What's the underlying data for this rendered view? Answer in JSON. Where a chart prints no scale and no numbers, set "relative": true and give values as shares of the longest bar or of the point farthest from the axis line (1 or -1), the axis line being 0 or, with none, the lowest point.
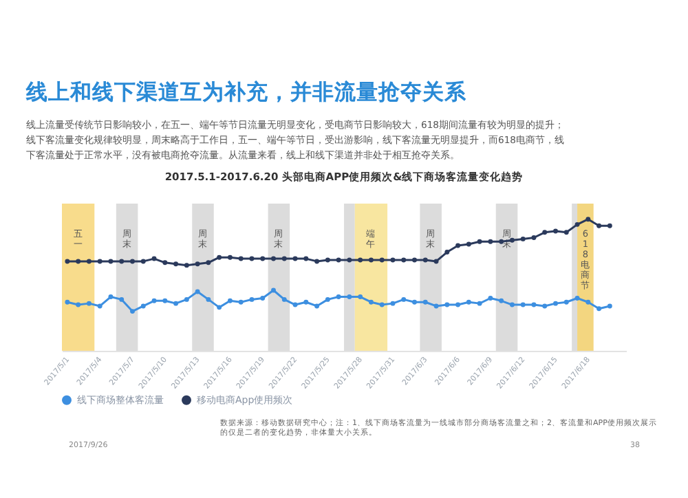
{
  "chart_data": {
    "type": "line",
    "title": "2017.5.1-2017.6.20 头部电商APP使用频次&线下商场客流量变化趋势",
    "relative": true,
    "marker": "circle",
    "legend": "bottom",
    "x": [
      "2017-05-01",
      "2017-05-02",
      "2017-05-03",
      "2017-05-04",
      "2017-05-05",
      "2017-05-06",
      "2017-05-07",
      "2017-05-08",
      "2017-05-09",
      "2017-05-10",
      "2017-05-11",
      "2017-05-12",
      "2017-05-13",
      "2017-05-14",
      "2017-05-15",
      "2017-05-16",
      "2017-05-17",
      "2017-05-18",
      "2017-05-19",
      "2017-05-20",
      "2017-05-21",
      "2017-05-22",
      "2017-05-23",
      "2017-05-24",
      "2017-05-25",
      "2017-05-26",
      "2017-05-27",
      "2017-05-28",
      "2017-05-29",
      "2017-05-30",
      "2017-05-31",
      "2017-06-01",
      "2017-06-02",
      "2017-06-03",
      "2017-06-04",
      "2017-06-05",
      "2017-06-06",
      "2017-06-07",
      "2017-06-08",
      "2017-06-09",
      "2017-06-10",
      "2017-06-11",
      "2017-06-12",
      "2017-06-13",
      "2017-06-14",
      "2017-06-15",
      "2017-06-16",
      "2017-06-17",
      "2017-06-18",
      "2017-06-19",
      "2017-06-20"
    ],
    "series": [
      {
        "name": "线下商场整体客流量",
        "color": "#3d8fe0",
        "values": [
          0.37,
          0.35,
          0.36,
          0.34,
          0.41,
          0.39,
          0.3,
          0.34,
          0.38,
          0.38,
          0.36,
          0.39,
          0.45,
          0.39,
          0.33,
          0.38,
          0.37,
          0.39,
          0.4,
          0.46,
          0.39,
          0.35,
          0.37,
          0.34,
          0.39,
          0.41,
          0.41,
          0.41,
          0.37,
          0.35,
          0.36,
          0.39,
          0.37,
          0.37,
          0.34,
          0.35,
          0.35,
          0.37,
          0.36,
          0.4,
          0.38,
          0.35,
          0.35,
          0.35,
          0.34,
          0.36,
          0.37,
          0.4,
          0.37,
          0.32,
          0.34
        ]
      },
      {
        "name": "移动电商App使用频次",
        "color": "#2b3a5c",
        "values": [
          0.68,
          0.68,
          0.68,
          0.68,
          0.68,
          0.68,
          0.68,
          0.68,
          0.7,
          0.67,
          0.66,
          0.65,
          0.66,
          0.67,
          0.71,
          0.71,
          0.7,
          0.7,
          0.7,
          0.7,
          0.7,
          0.7,
          0.7,
          0.68,
          0.69,
          0.69,
          0.69,
          0.69,
          0.69,
          0.69,
          0.69,
          0.69,
          0.69,
          0.69,
          0.68,
          0.75,
          0.8,
          0.81,
          0.83,
          0.83,
          0.83,
          0.84,
          0.85,
          0.86,
          0.9,
          0.91,
          0.9,
          0.96,
          1,
          0.95,
          0.95
        ]
      }
    ],
    "xlim": [
      "2017-04-30T12:00",
      "2017-06-21T12:00"
    ],
    "xticks": [
      {
        "value": "2017-05-01",
        "label": "2017/5/1"
      },
      {
        "value": "2017-05-04",
        "label": "2017/5/4"
      },
      {
        "value": "2017-05-07",
        "label": "2017/5/7"
      },
      {
        "value": "2017-05-10",
        "label": "2017/5/10"
      },
      {
        "value": "2017-05-13",
        "label": "2017/5/13"
      },
      {
        "value": "2017-05-16",
        "label": "2017/5/16"
      },
      {
        "value": "2017-05-19",
        "label": "2017/5/19"
      },
      {
        "value": "2017-05-22",
        "label": "2017/5/22"
      },
      {
        "value": "2017-05-25",
        "label": "2017/5/25"
      },
      {
        "value": "2017-05-28",
        "label": "2017/5/28"
      },
      {
        "value": "2017-05-31",
        "label": "2017/5/31"
      },
      {
        "value": "2017-06-03",
        "label": "2017/6/3"
      },
      {
        "value": "2017-06-06",
        "label": "2017/6/6"
      },
      {
        "value": "2017-06-09",
        "label": "2017/6/9"
      },
      {
        "value": "2017-06-12",
        "label": "2017/6/12"
      },
      {
        "value": "2017-06-15",
        "label": "2017/6/15"
      },
      {
        "value": "2017-06-18",
        "label": "2017/6/18"
      }
    ],
    "bands": [
      {
        "axis": "x",
        "from": "2017-04-30T12:00",
        "to": "2017-05-03T12:00",
        "label": "五一",
        "color": "#f8dc8c"
      },
      {
        "axis": "x",
        "from": "2017-05-05T12:00",
        "to": "2017-05-07T12:00",
        "label": "周末",
        "color": "#dcdcdc"
      },
      {
        "axis": "x",
        "from": "2017-05-12T12:00",
        "to": "2017-05-14T12:00",
        "label": "周末",
        "color": "#dcdcdc"
      },
      {
        "axis": "x",
        "from": "2017-05-19T12:00",
        "to": "2017-05-21T12:00",
        "label": "周末",
        "color": "#dcdcdc"
      },
      {
        "axis": "x",
        "from": "2017-05-26T12:00",
        "to": "2017-05-27T12:00",
        "label": null,
        "color": "#dcdcdc"
      },
      {
        "axis": "x",
        "from": "2017-05-27T12:00",
        "to": "2017-05-30T12:00",
        "label": "端午",
        "color": "#f8e6a0"
      },
      {
        "axis": "x",
        "from": "2017-06-02T12:00",
        "to": "2017-06-04T12:00",
        "label": "周末",
        "color": "#dcdcdc"
      },
      {
        "axis": "x",
        "from": "2017-06-09T12:00",
        "to": "2017-06-11T12:00",
        "label": "周末",
        "color": "#dcdcdc"
      },
      {
        "axis": "x",
        "from": "2017-06-16T12:00",
        "to": "2017-06-17T00:00",
        "label": null,
        "color": "#dcdcdc"
      },
      {
        "axis": "x",
        "from": "2017-06-17T00:00",
        "to": "2017-06-18T12:00",
        "label": "618电商节",
        "color": "#f3d680"
      }
    ],
    "annotations": [
      "线上和线下渠道互为补充，并非流量抢夺关系",
      "线上流量受传统节日影响较小，在五一、端午等节日流量无明显变化，受电商节日影响较大，618期间流量有较为明显的提升；线下客流量变化规律较明显，周末略高于工作日，五一、端午等节日，受出游影响，线下客流量无明显提升，而618电商节，线下客流量处于正常水平，没有被电商抢夺流量。从流量来看，线上和线下渠道并非处于相互抢夺关系。",
      "数据来源：移动数据研究中心；注：1、线下商场客流量为一线城市部分商场客流量之和；2、客流量和APP使用频次展示的仅是二者的变化趋势，非体量大小关系。",
      "2017/9/26",
      "38"
    ]
  }
}
